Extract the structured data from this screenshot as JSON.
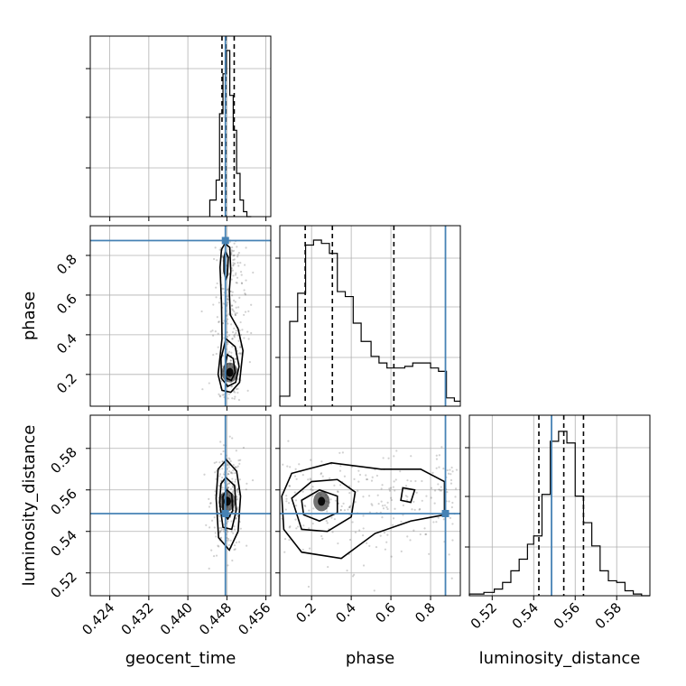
{
  "chart_data": {
    "type": "corner",
    "parameters": [
      "geocent_time",
      "phase",
      "luminosity_distance"
    ],
    "ranges": {
      "geocent_time": [
        0.42,
        0.457
      ],
      "phase": [
        0.04,
        0.95
      ],
      "luminosity_distance": [
        0.509,
        0.596
      ]
    },
    "ticks": {
      "geocent_time": [
        "0.424",
        "0.432",
        "0.440",
        "0.448",
        "0.456"
      ],
      "phase": [
        "0.2",
        "0.4",
        "0.6",
        "0.8"
      ],
      "luminosity_distance": [
        "0.52",
        "0.54",
        "0.56",
        "0.58"
      ]
    },
    "truths": {
      "geocent_time": 0.4477,
      "phase": 0.875,
      "luminosity_distance": 0.5486
    },
    "quantiles": {
      "geocent_time": [
        0.447,
        0.4478,
        0.4495
      ],
      "phase": [
        0.168,
        0.305,
        0.615
      ],
      "luminosity_distance": [
        0.5425,
        0.5545,
        0.564
      ]
    },
    "histograms": {
      "geocent_time": {
        "edges": [
          0.4445,
          0.4458,
          0.4465,
          0.4472,
          0.4479,
          0.4486,
          0.4493,
          0.45,
          0.4507,
          0.4514,
          0.4521,
          0.453
        ],
        "counts": [
          0.1,
          0.22,
          0.62,
          0.86,
          1.0,
          0.73,
          0.52,
          0.26,
          0.1,
          0.03,
          0.0
        ]
      },
      "phase": {
        "edges": [
          0.04,
          0.09,
          0.13,
          0.17,
          0.21,
          0.25,
          0.29,
          0.33,
          0.37,
          0.41,
          0.45,
          0.5,
          0.54,
          0.58,
          0.63,
          0.67,
          0.71,
          0.76,
          0.8,
          0.84,
          0.88,
          0.92,
          0.95
        ],
        "counts": [
          0.06,
          0.51,
          0.68,
          0.97,
          1.0,
          0.98,
          0.92,
          0.69,
          0.66,
          0.5,
          0.39,
          0.3,
          0.26,
          0.23,
          0.23,
          0.24,
          0.26,
          0.26,
          0.23,
          0.21,
          0.05,
          0.03
        ]
      },
      "luminosity_distance": {
        "edges": [
          0.509,
          0.516,
          0.521,
          0.525,
          0.529,
          0.533,
          0.537,
          0.54,
          0.544,
          0.548,
          0.552,
          0.556,
          0.56,
          0.564,
          0.568,
          0.572,
          0.576,
          0.58,
          0.584,
          0.588,
          0.592,
          0.596
        ],
        "counts": [
          0.01,
          0.02,
          0.04,
          0.08,
          0.15,
          0.22,
          0.31,
          0.36,
          0.61,
          0.93,
          0.99,
          0.92,
          0.6,
          0.44,
          0.3,
          0.15,
          0.09,
          0.08,
          0.03,
          0.01,
          0.0
        ]
      }
    },
    "density_2d": {
      "phase_vs_geocent_time": {
        "center": [
          0.4486,
          0.21
        ],
        "contours": [
          [
            [
              0.4476,
              0.86
            ],
            [
              0.4486,
              0.84
            ],
            [
              0.4488,
              0.72
            ],
            [
              0.4485,
              0.62
            ],
            [
              0.4487,
              0.5
            ],
            [
              0.4503,
              0.43
            ],
            [
              0.4513,
              0.32
            ],
            [
              0.4506,
              0.16
            ],
            [
              0.4488,
              0.11
            ],
            [
              0.447,
              0.12
            ],
            [
              0.4462,
              0.2
            ],
            [
              0.447,
              0.38
            ],
            [
              0.4469,
              0.56
            ],
            [
              0.4466,
              0.74
            ],
            [
              0.4469,
              0.83
            ]
          ],
          [
            [
              0.4477,
              0.82
            ],
            [
              0.4483,
              0.79
            ],
            [
              0.4481,
              0.7
            ],
            [
              0.4478,
              0.68
            ],
            [
              0.4474,
              0.72
            ],
            [
              0.4474,
              0.79
            ]
          ],
          [
            [
              0.4478,
              0.38
            ],
            [
              0.4497,
              0.34
            ],
            [
              0.4505,
              0.24
            ],
            [
              0.4498,
              0.16
            ],
            [
              0.4482,
              0.14
            ],
            [
              0.4469,
              0.18
            ],
            [
              0.4468,
              0.28
            ]
          ],
          [
            [
              0.4481,
              0.3
            ],
            [
              0.4493,
              0.28
            ],
            [
              0.4497,
              0.21
            ],
            [
              0.4489,
              0.17
            ],
            [
              0.4479,
              0.18
            ],
            [
              0.4476,
              0.24
            ]
          ]
        ]
      },
      "luminosity_distance_vs_geocent_time": {
        "center": [
          0.4481,
          0.5545
        ],
        "contours": [
          [
            [
              0.4479,
              0.5745
            ],
            [
              0.45,
              0.569
            ],
            [
              0.4508,
              0.557
            ],
            [
              0.4503,
              0.54
            ],
            [
              0.4485,
              0.531
            ],
            [
              0.4463,
              0.537
            ],
            [
              0.4458,
              0.556
            ],
            [
              0.4462,
              0.57
            ]
          ],
          [
            [
              0.4478,
              0.566
            ],
            [
              0.4496,
              0.562
            ],
            [
              0.4499,
              0.55
            ],
            [
              0.449,
              0.541
            ],
            [
              0.4472,
              0.542
            ],
            [
              0.4465,
              0.554
            ],
            [
              0.4468,
              0.563
            ]
          ],
          [
            [
              0.448,
              0.56
            ],
            [
              0.449,
              0.558
            ],
            [
              0.4492,
              0.55
            ],
            [
              0.4482,
              0.546
            ],
            [
              0.4472,
              0.549
            ],
            [
              0.4472,
              0.557
            ]
          ]
        ]
      },
      "luminosity_distance_vs_phase": {
        "center": [
          0.25,
          0.5545
        ],
        "contours": [
          [
            [
              0.05,
              0.557
            ],
            [
              0.1,
              0.568
            ],
            [
              0.3,
              0.573
            ],
            [
              0.55,
              0.57
            ],
            [
              0.75,
              0.57
            ],
            [
              0.87,
              0.564
            ],
            [
              0.87,
              0.548
            ],
            [
              0.7,
              0.545
            ],
            [
              0.52,
              0.539
            ],
            [
              0.35,
              0.527
            ],
            [
              0.15,
              0.53
            ],
            [
              0.06,
              0.541
            ]
          ],
          [
            [
              0.1,
              0.556
            ],
            [
              0.2,
              0.564
            ],
            [
              0.33,
              0.565
            ],
            [
              0.42,
              0.559
            ],
            [
              0.4,
              0.547
            ],
            [
              0.28,
              0.54
            ],
            [
              0.15,
              0.541
            ]
          ],
          [
            [
              0.15,
              0.555
            ],
            [
              0.24,
              0.56
            ],
            [
              0.33,
              0.557
            ],
            [
              0.33,
              0.549
            ],
            [
              0.24,
              0.545
            ],
            [
              0.16,
              0.548
            ]
          ],
          [
            [
              0.66,
              0.561
            ],
            [
              0.72,
              0.56
            ],
            [
              0.7,
              0.554
            ],
            [
              0.65,
              0.555
            ]
          ]
        ]
      }
    },
    "colors": {
      "truth": "#4682b4",
      "hist": "#000000",
      "grid": "#b0b0b0",
      "density": "#000000"
    }
  }
}
